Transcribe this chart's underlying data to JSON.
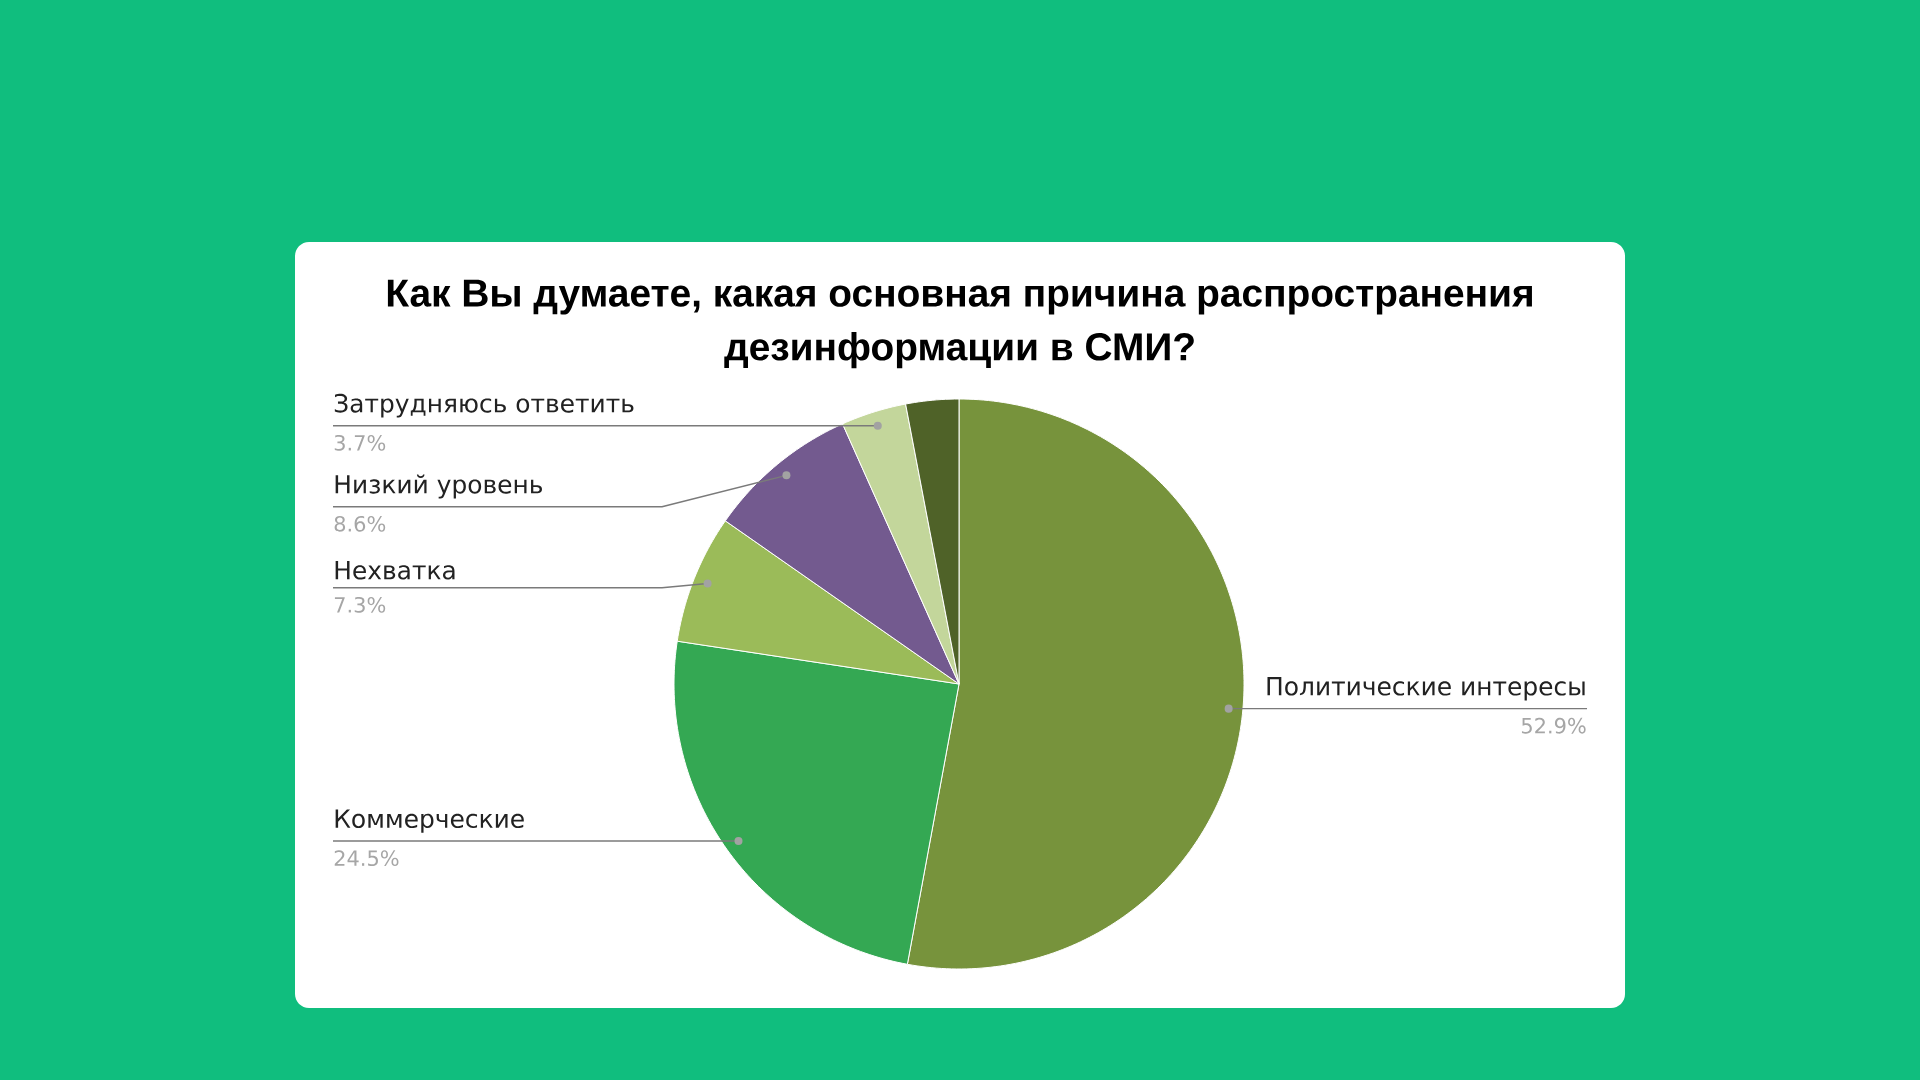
{
  "chart_data": {
    "type": "pie",
    "title": "Как Вы думаете, какая основная причина распространения дезинформации в СМИ?",
    "categories": [
      "Политические интересы",
      "Коммерческие",
      "Нехватка",
      "Низкий уровень",
      "Затрудняюсь ответить",
      null
    ],
    "values": [
      52.9,
      24.5,
      7.3,
      8.6,
      3.7,
      3.0
    ],
    "colors": [
      "#77933c",
      "#34a853",
      "#9bbb59",
      "#735a8f",
      "#c3d69b",
      "#4f6228"
    ],
    "value_labels": [
      "52.9%",
      "24.5%",
      "7.3%",
      "8.6%",
      "3.7%",
      null
    ]
  }
}
